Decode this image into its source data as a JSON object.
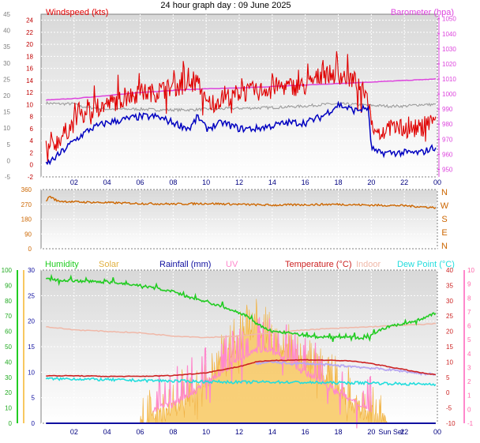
{
  "title": "24 hour graph day : 09 June 2025",
  "colors": {
    "wind": "#e00000",
    "wind_avg": "#0000c0",
    "baro": "#dd44dd",
    "winddir": "#cc6600",
    "humidity": "#22cc22",
    "solar": "#f8c860",
    "rainfall": "#1010a0",
    "uv": "#ff88cc",
    "temperature": "#cc2222",
    "indoor": "#f0b8a8",
    "dewpoint": "#22dddd",
    "grey_trace": "#a0a0a0",
    "purple_trace": "#b8a8f0"
  },
  "chart_data": [
    {
      "type": "line",
      "panel": "wind",
      "title": "",
      "x_ticks": [
        "02",
        "04",
        "06",
        "08",
        "10",
        "12",
        "14",
        "16",
        "18",
        "20",
        "22",
        "00"
      ],
      "xlim": [
        0,
        24
      ],
      "left_axis_outer": {
        "label": "",
        "ticks": [
          "-5",
          "0",
          "5",
          "10",
          "15",
          "20",
          "25",
          "30",
          "35",
          "40",
          "45"
        ],
        "ylim": [
          -5,
          45
        ]
      },
      "left_axis_inner": {
        "label": "Windspeed (kts)",
        "ticks": [
          "-2",
          "0",
          "2",
          "4",
          "6",
          "8",
          "10",
          "12",
          "14",
          "16",
          "18",
          "20",
          "22",
          "24"
        ],
        "ylim": [
          -2,
          25
        ]
      },
      "right_axis": {
        "label": "Barometer (hpa)",
        "ticks": [
          "950",
          "960",
          "970",
          "980",
          "990",
          "1000",
          "1010",
          "1020",
          "1030",
          "1040",
          "1050"
        ],
        "ylim": [
          945,
          1053
        ]
      },
      "series": [
        {
          "name": "Windspeed (kts)",
          "role": "gust",
          "x": [
            0.3,
            1,
            2,
            3,
            4,
            5,
            6,
            7,
            8,
            9,
            9.5,
            10,
            11,
            12,
            13,
            14,
            15,
            16,
            17,
            18,
            19,
            19.8,
            20,
            20.3,
            21,
            22,
            23,
            23.9
          ],
          "y": [
            2,
            4,
            7,
            9,
            10,
            11,
            12,
            12,
            13,
            13,
            14,
            10,
            11,
            12,
            12,
            13,
            13,
            13,
            15,
            15,
            14,
            11,
            7,
            5,
            6,
            6,
            6,
            8
          ]
        },
        {
          "name": "",
          "role": "average",
          "x": [
            0.3,
            1,
            2,
            3,
            4,
            5,
            6,
            7,
            8,
            9,
            9.5,
            10,
            11,
            12,
            13,
            14,
            15,
            16,
            17,
            18,
            19,
            19.8,
            20,
            20.3,
            21,
            22,
            23,
            23.9
          ],
          "y": [
            0,
            1.5,
            4,
            6,
            7,
            7.5,
            8,
            8,
            7,
            6,
            8,
            6,
            7,
            6,
            6,
            6.5,
            7,
            7,
            8,
            10,
            9,
            9.5,
            3,
            2,
            2,
            2,
            2,
            3
          ]
        },
        {
          "name": "Barometer (hpa)",
          "axis": "right",
          "x": [
            0.3,
            2,
            4,
            6,
            8,
            10,
            12,
            14,
            16,
            18,
            20,
            22,
            23.9
          ],
          "y": [
            996,
            997,
            999,
            1001,
            1002.5,
            1003.5,
            1004,
            1005,
            1006,
            1007,
            1008,
            1009,
            1010
          ]
        },
        {
          "name": "",
          "role": "grey",
          "axis": "right",
          "x": [
            0.3,
            1,
            2,
            2.3,
            3,
            4,
            5,
            6,
            7,
            8,
            9,
            10,
            12,
            14,
            16,
            17,
            18,
            19,
            20,
            21,
            22,
            23,
            23.9
          ],
          "y": [
            994,
            993.5,
            993.5,
            992,
            991,
            990,
            990,
            990,
            989.5,
            989.5,
            989.5,
            990,
            990.5,
            991,
            992,
            993,
            993.5,
            993,
            992.5,
            992,
            992,
            993,
            993
          ]
        }
      ]
    },
    {
      "type": "line",
      "panel": "winddir",
      "x_ticks": [
        "02",
        "04",
        "06",
        "08",
        "10",
        "12",
        "14",
        "16",
        "18",
        "20",
        "22",
        "00"
      ],
      "xlim": [
        0,
        24
      ],
      "left_axis": {
        "label": "",
        "ticks": [
          "0",
          "90",
          "180",
          "270",
          "360"
        ],
        "ylim": [
          0,
          360
        ]
      },
      "right_labels": [
        "N",
        "W",
        "S",
        "E",
        "N"
      ],
      "series": [
        {
          "name": "",
          "x": [
            0.3,
            0.5,
            1,
            2,
            4,
            6,
            8,
            10,
            12,
            14,
            16,
            18,
            20,
            22,
            23,
            23.9
          ],
          "y": [
            285,
            320,
            290,
            285,
            280,
            275,
            272,
            275,
            270,
            265,
            268,
            270,
            265,
            262,
            255,
            250
          ]
        }
      ]
    },
    {
      "type": "line",
      "panel": "multi",
      "x_ticks": [
        "02",
        "04",
        "06",
        "08",
        "10",
        "12",
        "14",
        "16",
        "18",
        "20",
        "Sun Set",
        "22",
        "00"
      ],
      "xlim": [
        0,
        24
      ],
      "humidity_axis": {
        "label": "Humidity",
        "ticks": [
          "0",
          "10",
          "20",
          "30",
          "40",
          "50",
          "60",
          "70",
          "80",
          "90",
          "100"
        ],
        "ylim": [
          0,
          100
        ]
      },
      "solar_axis": {
        "label": "Solar",
        "ticks": [],
        "ylim": [
          0,
          1000
        ]
      },
      "rainfall_axis": {
        "label": "Rainfall (mm)",
        "ticks": [
          "0",
          "5",
          "10",
          "15",
          "20",
          "25",
          "30"
        ],
        "ylim": [
          0,
          30
        ]
      },
      "uv_axis": {
        "label": "UV",
        "ticks": [
          "-1",
          "0",
          "1",
          "2",
          "3",
          "4",
          "5",
          "6",
          "7",
          "8",
          "9",
          "10"
        ],
        "ylim": [
          -1,
          10
        ]
      },
      "temperature_axis": {
        "label": "Temperature (°C)",
        "ticks": [
          "-10",
          "-5",
          "0",
          "5",
          "10",
          "15",
          "20",
          "25",
          "30",
          "35",
          "40"
        ],
        "ylim": [
          -10,
          40
        ]
      },
      "indoor_label": "Indoor",
      "dewpoint_label": "Dew Point (°C)",
      "series": [
        {
          "name": "Humidity",
          "axis": "humidity",
          "x": [
            0.3,
            2,
            4,
            6,
            8,
            9,
            10,
            11,
            12,
            12.5,
            13,
            14,
            15,
            16,
            17,
            18,
            19,
            19.5,
            20,
            21,
            22,
            23,
            23.9
          ],
          "y": [
            94,
            93,
            92,
            90,
            86,
            82,
            79,
            76,
            72,
            70,
            65,
            60,
            59,
            57,
            56,
            56,
            56,
            55,
            58,
            63,
            65,
            68,
            72
          ]
        },
        {
          "name": "Temperature (°C)",
          "axis": "temperature",
          "x": [
            0.3,
            2,
            4,
            6,
            8,
            10,
            11,
            12,
            13,
            14,
            15,
            16,
            17,
            18,
            19,
            20,
            21,
            22,
            23,
            23.9
          ],
          "y": [
            5.5,
            5.5,
            5.3,
            5.3,
            5.6,
            6.5,
            7.5,
            8.5,
            10,
            10.5,
            10.6,
            10.7,
            10.6,
            10.5,
            10.2,
            9.5,
            8.5,
            7.5,
            6.5,
            5.8
          ]
        },
        {
          "name": "Indoor",
          "axis": "temperature",
          "x": [
            0.3,
            2,
            4,
            6,
            8,
            10,
            12,
            14,
            16,
            18,
            20,
            22,
            23.9
          ],
          "y": [
            21.5,
            20.5,
            20,
            19.5,
            18.5,
            18,
            18.5,
            19.5,
            20.5,
            21,
            21.5,
            22,
            22.5
          ]
        },
        {
          "name": "Dew Point (°C)",
          "axis": "temperature",
          "x": [
            0.3,
            2,
            4,
            6,
            8,
            10,
            12,
            14,
            16,
            18,
            20,
            22,
            23.9
          ],
          "y": [
            4.5,
            4.5,
            4.2,
            4,
            3.8,
            3.6,
            3.4,
            3.5,
            3.3,
            3.2,
            3.2,
            2.8,
            2.8
          ]
        },
        {
          "name": "",
          "role": "purple",
          "axis": "temperature",
          "x": [
            13,
            14,
            15,
            16,
            17,
            18,
            19,
            20,
            21,
            22,
            23,
            23.9
          ],
          "y": [
            9.5,
            10,
            9.5,
            9.5,
            9.2,
            8.8,
            8.5,
            8,
            7.5,
            7,
            6.2,
            6
          ]
        },
        {
          "name": "Solar",
          "axis": "solar",
          "x": [
            6,
            7,
            8,
            9,
            10,
            11,
            12,
            12.5,
            13,
            13.5,
            14,
            15,
            16,
            17,
            18,
            19,
            20,
            21
          ],
          "y": [
            0,
            40,
            90,
            170,
            280,
            400,
            520,
            560,
            620,
            560,
            520,
            460,
            390,
            310,
            220,
            120,
            30,
            0
          ]
        },
        {
          "name": "UV",
          "axis": "uv",
          "x": [
            6.8,
            8,
            9,
            10,
            11,
            12,
            13,
            13.5,
            14,
            15,
            16,
            17,
            18,
            19,
            20
          ],
          "y": [
            0,
            0.4,
            1,
            2,
            2.7,
            3.6,
            4.2,
            4.4,
            4.2,
            3.5,
            2.6,
            2,
            1.2,
            0.5,
            0
          ]
        },
        {
          "name": "Rainfall (mm)",
          "axis": "rainfall",
          "x": [
            0.3,
            23.9
          ],
          "y": [
            0,
            0
          ]
        }
      ]
    }
  ]
}
